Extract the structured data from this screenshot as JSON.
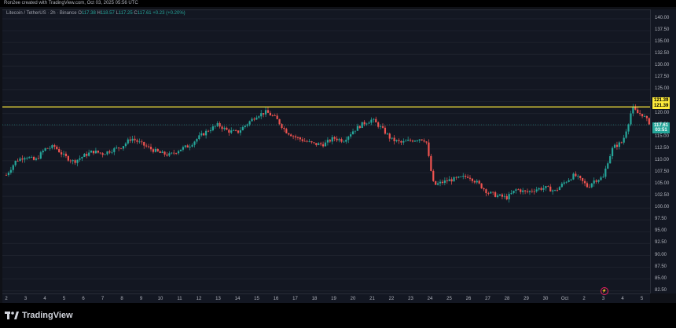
{
  "header": {
    "caption": "Ron2ee created with TradingView.com, Oct 03, 2025 05:56 UTC"
  },
  "legend": {
    "symbol": "Litecoin / TetherUS · 2h · Binance",
    "o_label": "O",
    "o_value": "117.38",
    "h_label": "H",
    "h_value": "118.57",
    "l_label": "L",
    "l_value": "117.25",
    "c_label": "C",
    "c_value": "117.61",
    "change": "+0.23 (+0.20%)"
  },
  "price_badges": {
    "resistance_top": "121.39",
    "resistance_bottom": "121.39",
    "last_price": "117.61",
    "countdown": "03:51"
  },
  "logo": {
    "text": "TradingView"
  },
  "marker": {
    "symbol": "⚡"
  },
  "colors": {
    "up": "#26a69a",
    "down": "#ef5350",
    "resistance": "#ffeb3b",
    "background": "#131722"
  },
  "chart_data": {
    "type": "candlestick",
    "symbol": "LTCUSDT",
    "interval": "2h",
    "ylim": [
      80,
      142.5
    ],
    "yticks": [
      "82.50",
      "85.00",
      "87.50",
      "90.00",
      "92.50",
      "95.00",
      "97.50",
      "100.00",
      "102.50",
      "105.00",
      "107.50",
      "110.00",
      "112.50",
      "115.00",
      "117.50",
      "120.00",
      "122.50",
      "125.00",
      "127.50",
      "130.00",
      "132.50",
      "135.00",
      "137.50",
      "140.00"
    ],
    "xticks": [
      "2",
      "3",
      "4",
      "5",
      "6",
      "7",
      "8",
      "9",
      "10",
      "11",
      "12",
      "13",
      "14",
      "15",
      "16",
      "17",
      "18",
      "19",
      "20",
      "21",
      "22",
      "23",
      "24",
      "25",
      "26",
      "27",
      "28",
      "29",
      "30",
      "Oct",
      "2",
      "3",
      "4",
      "5"
    ],
    "horizontal_lines": [
      121.39
    ],
    "last_price": 117.61,
    "path": [
      [
        0,
        107
      ],
      [
        0.5,
        110
      ],
      [
        1,
        111
      ],
      [
        1.5,
        110
      ],
      [
        2,
        112.5
      ],
      [
        2.5,
        113
      ],
      [
        3,
        111
      ],
      [
        3.5,
        109.8
      ],
      [
        4,
        111
      ],
      [
        4.5,
        112
      ],
      [
        5,
        111.5
      ],
      [
        5.5,
        112.3
      ],
      [
        6,
        113
      ],
      [
        6.5,
        114.8
      ],
      [
        7,
        113.6
      ],
      [
        7.5,
        112.5
      ],
      [
        8,
        111.6
      ],
      [
        8.5,
        111.2
      ],
      [
        9,
        112.4
      ],
      [
        9.5,
        113.2
      ],
      [
        10,
        115
      ],
      [
        10.5,
        116.5
      ],
      [
        11,
        117.6
      ],
      [
        11.5,
        116.3
      ],
      [
        12,
        116
      ],
      [
        12.5,
        117.8
      ],
      [
        13,
        119.6
      ],
      [
        13.5,
        120.3
      ],
      [
        14,
        119
      ],
      [
        14.5,
        116.3
      ],
      [
        15,
        115
      ],
      [
        15.5,
        114.2
      ],
      [
        16,
        113.5
      ],
      [
        16.5,
        113.5
      ],
      [
        17,
        114.8
      ],
      [
        17.5,
        114.3
      ],
      [
        18,
        116.3
      ],
      [
        18.5,
        117.8
      ],
      [
        19,
        118.7
      ],
      [
        19.5,
        116.8
      ],
      [
        20,
        114.5
      ],
      [
        20.5,
        113.8
      ],
      [
        21,
        114.3
      ],
      [
        21.5,
        114.7
      ],
      [
        21.8,
        114.3
      ],
      [
        22,
        109
      ],
      [
        22.2,
        104.8
      ],
      [
        22.6,
        105.4
      ],
      [
        23,
        105.9
      ],
      [
        23.5,
        106.3
      ],
      [
        24,
        106.8
      ],
      [
        24.5,
        105.2
      ],
      [
        25,
        103.3
      ],
      [
        25.5,
        102.6
      ],
      [
        26,
        102.2
      ],
      [
        26.5,
        104
      ],
      [
        27,
        103.3
      ],
      [
        27.5,
        104
      ],
      [
        28,
        104.3
      ],
      [
        28.5,
        103.6
      ],
      [
        29,
        105.5
      ],
      [
        29.5,
        107
      ],
      [
        30,
        105.3
      ],
      [
        30.2,
        104.4
      ],
      [
        30.5,
        105.8
      ],
      [
        31,
        106.5
      ],
      [
        31.2,
        109.5
      ],
      [
        31.5,
        112.8
      ],
      [
        32,
        114
      ],
      [
        32.3,
        118
      ],
      [
        32.5,
        121.2
      ],
      [
        32.8,
        120
      ],
      [
        33,
        119.9
      ],
      [
        33.3,
        118.4
      ],
      [
        33.5,
        117.6
      ]
    ]
  }
}
